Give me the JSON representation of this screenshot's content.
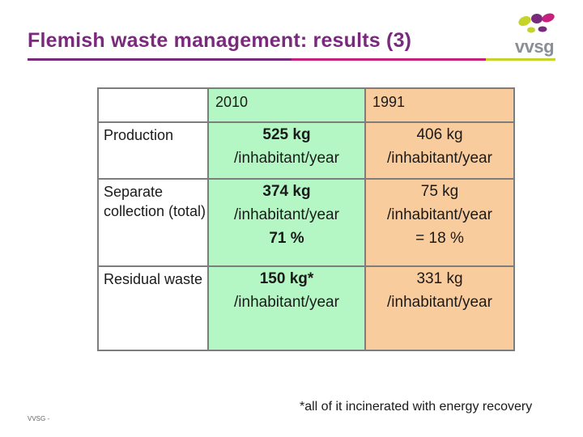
{
  "slide": {
    "title": "Flemish waste management: results (3)",
    "logo_text": "vvsg",
    "footer_mark": "VVSG -",
    "footnote": "*all of it incinerated with energy recovery"
  },
  "colors": {
    "title": "#7a2a7c",
    "rule_purple": "#7a2a7c",
    "rule_magenta": "#c8217d",
    "rule_lime": "#c6d32a",
    "col_2010_bg": "#b5f7c4",
    "col_1991_bg": "#f9cc9e"
  },
  "table": {
    "headers": [
      "",
      "2010",
      "1991"
    ],
    "rows": [
      {
        "label": "Production",
        "v2010": [
          "525 kg",
          "/inhabitant/year"
        ],
        "v1991": [
          "406 kg",
          "/inhabitant/year"
        ]
      },
      {
        "label": "Separate collection (total)",
        "v2010": [
          "374 kg",
          "/inhabitant/year",
          "71 %"
        ],
        "v1991": [
          "75 kg",
          "/inhabitant/year",
          "= 18 %"
        ]
      },
      {
        "label": "Residual waste",
        "v2010": [
          "150 kg*",
          "/inhabitant/year"
        ],
        "v1991": [
          "331 kg",
          "/inhabitant/year"
        ]
      }
    ]
  }
}
